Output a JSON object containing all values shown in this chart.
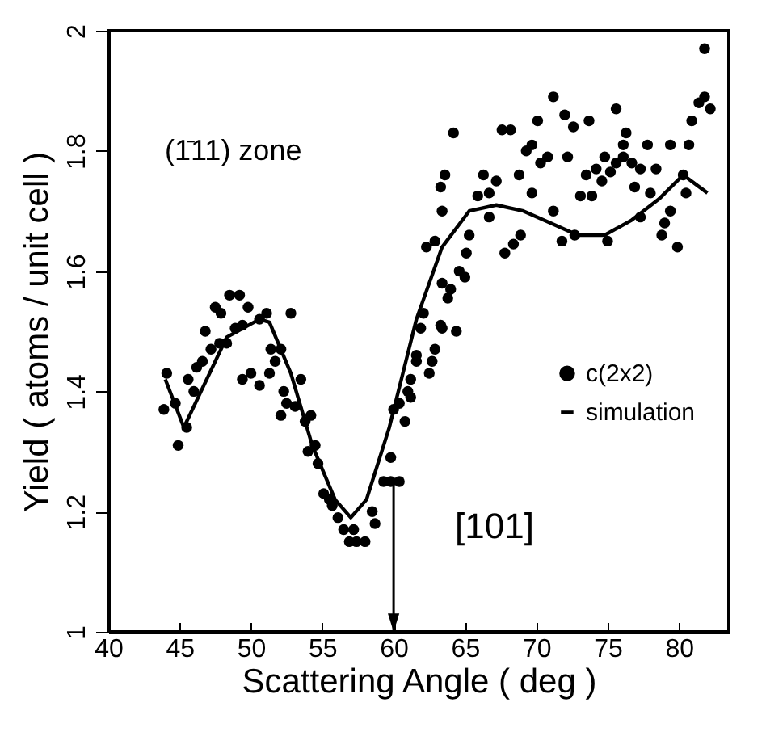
{
  "chart_data": {
    "type": "scatter",
    "xlabel": "Scattering Angle ( deg )",
    "ylabel": "Yield ( atoms / unit cell )",
    "xlim": [
      40,
      83.5
    ],
    "ylim": [
      1,
      2
    ],
    "xticks": [
      40,
      45,
      50,
      55,
      60,
      65,
      70,
      75,
      80
    ],
    "yticks": [
      1,
      1.2,
      1.4,
      1.6,
      1.8,
      2
    ],
    "grid": false,
    "legend": "right",
    "marker": "circle",
    "annotations": [
      "(1̄11) zone",
      {
        "text": "[101]",
        "x": 60,
        "y": 1.25
      }
    ],
    "series": [
      {
        "name": "c(2x2)",
        "color": "#000000",
        "x": [
          44.1,
          43.9,
          44.7,
          44.9,
          45.5,
          45.6,
          46.0,
          46.2,
          46.6,
          46.8,
          47.2,
          47.5,
          47.9,
          47.8,
          48.3,
          48.5,
          49.2,
          48.9,
          49.4,
          49.8,
          49.4,
          50.0,
          50.6,
          50.6,
          51.1,
          51.3,
          51.4,
          52.1,
          51.7,
          52.8,
          52.3,
          52.5,
          53.1,
          53.5,
          52.1,
          53.8,
          54.2,
          54.0,
          54.5,
          54.7,
          55.1,
          55.5,
          55.7,
          56.1,
          56.5,
          56.9,
          57.4,
          58.0,
          57.2,
          58.5,
          58.7,
          59.3,
          59.8,
          60.4,
          59.8,
          60.0,
          60.8,
          61.0,
          61.2,
          61.6,
          60.4,
          61.2,
          61.6,
          61.9,
          62.1,
          62.7,
          62.5,
          62.9,
          63.4,
          63.8,
          63.4,
          64.0,
          63.3,
          64.4,
          64.6,
          65.0,
          65.1,
          65.3,
          62.3,
          62.9,
          63.4,
          63.3,
          63.6,
          64.2,
          65.9,
          66.3,
          66.7,
          66.7,
          67.2,
          67.6,
          68.2,
          67.8,
          68.4,
          68.9,
          68.8,
          69.3,
          69.7,
          69.7,
          70.1,
          70.3,
          70.8,
          71.2,
          71.2,
          71.8,
          72.0,
          72.2,
          72.6,
          72.7,
          73.1,
          73.5,
          73.7,
          73.9,
          74.2,
          74.6,
          74.8,
          75.0,
          75.2,
          75.6,
          75.6,
          76.1,
          76.3,
          76.1,
          76.7,
          76.9,
          77.3,
          77.3,
          77.8,
          78.0,
          78.4,
          78.8,
          79.0,
          79.4,
          79.4,
          79.9,
          80.3,
          80.5,
          80.7,
          80.9,
          81.4,
          81.8,
          82.2,
          81.8
        ],
        "values": [
          1.43,
          1.37,
          1.38,
          1.31,
          1.34,
          1.42,
          1.4,
          1.44,
          1.45,
          1.5,
          1.47,
          1.54,
          1.53,
          1.48,
          1.48,
          1.56,
          1.56,
          1.505,
          1.51,
          1.54,
          1.42,
          1.43,
          1.41,
          1.52,
          1.53,
          1.43,
          1.47,
          1.47,
          1.45,
          1.53,
          1.4,
          1.38,
          1.375,
          1.42,
          1.36,
          1.35,
          1.36,
          1.3,
          1.31,
          1.28,
          1.23,
          1.22,
          1.21,
          1.19,
          1.17,
          1.15,
          1.15,
          1.15,
          1.17,
          1.2,
          1.18,
          1.25,
          1.25,
          1.25,
          1.29,
          1.37,
          1.35,
          1.4,
          1.39,
          1.45,
          1.38,
          1.42,
          1.46,
          1.505,
          1.53,
          1.45,
          1.43,
          1.47,
          1.505,
          1.555,
          1.58,
          1.57,
          1.51,
          1.5,
          1.6,
          1.59,
          1.63,
          1.66,
          1.64,
          1.65,
          1.7,
          1.74,
          1.76,
          1.83,
          1.725,
          1.76,
          1.69,
          1.73,
          1.75,
          1.835,
          1.835,
          1.63,
          1.645,
          1.66,
          1.76,
          1.8,
          1.73,
          1.81,
          1.85,
          1.78,
          1.79,
          1.89,
          1.7,
          1.65,
          1.86,
          1.79,
          1.84,
          1.66,
          1.725,
          1.76,
          1.85,
          1.725,
          1.77,
          1.75,
          1.79,
          1.65,
          1.765,
          1.87,
          1.78,
          1.79,
          1.83,
          1.81,
          1.78,
          1.74,
          1.77,
          1.69,
          1.81,
          1.73,
          1.77,
          1.66,
          1.68,
          1.81,
          1.7,
          1.64,
          1.76,
          1.73,
          1.81,
          1.85,
          1.88,
          1.89,
          1.87,
          1.97
        ]
      },
      {
        "name": "simulation",
        "type": "line",
        "color": "#000000",
        "line_style": "solid",
        "marker": "none",
        "x": [
          44.0,
          45.3,
          48.3,
          50.6,
          51.3,
          52.8,
          54.3,
          55.9,
          57.0,
          58.1,
          59.7,
          61.6,
          63.4,
          65.3,
          67.2,
          69.1,
          71.0,
          72.9,
          74.8,
          76.7,
          78.6,
          80.3,
          82.0
        ],
        "values": [
          1.42,
          1.34,
          1.49,
          1.52,
          1.515,
          1.43,
          1.31,
          1.22,
          1.19,
          1.22,
          1.34,
          1.52,
          1.64,
          1.7,
          1.71,
          1.7,
          1.68,
          1.66,
          1.66,
          1.685,
          1.72,
          1.76,
          1.73
        ]
      }
    ]
  }
}
